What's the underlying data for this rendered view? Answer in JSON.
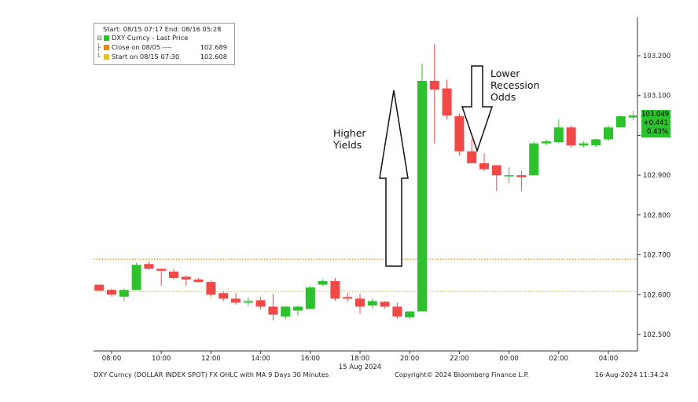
{
  "legend": {
    "header": "Start: 08/15 07:17 End: 08/16 05:28",
    "series_label": "DXY Curncy - Last Price",
    "close_label": "Close on 08/05 ----",
    "close_value": "102.689",
    "close_color": "#e08a12",
    "start_label": "Start on 08/15 07:30",
    "start_value": "102.608",
    "start_color": "#e6c31a"
  },
  "annotations": {
    "left": [
      "Higher",
      "Yields"
    ],
    "right": [
      "Lower",
      "Recession",
      "Odds"
    ]
  },
  "last_price": {
    "price": "103.049",
    "change": "+0.441",
    "pct": "0.43%",
    "color": "#2ec12e"
  },
  "footer": {
    "left": "DXY Curncy (DOLLAR INDEX SPOT) FX OHLC with MA 9 Days 30 Minutes",
    "center": "Copyright© 2024 Bloomberg Finance L.P.",
    "right": "16-Aug-2024 11:34:24"
  },
  "chart_data": {
    "type": "candlestick",
    "title": "",
    "xlabel": "",
    "ylabel": "",
    "ylim": [
      102.45,
      103.27
    ],
    "x_tick_labels": [
      "08:00",
      "10:00",
      "12:00",
      "14:00",
      "16:00",
      "18:00",
      "20:00",
      "22:00",
      "00:00",
      "02:00",
      "04:00"
    ],
    "x_date_label": "15 Aug 2024",
    "y_ticks": [
      102.5,
      102.6,
      102.7,
      102.8,
      102.9,
      103.0,
      103.1,
      103.2
    ],
    "y_tick_labels": [
      "102.500",
      "102.600",
      "102.700",
      "102.800",
      "102.900",
      "",
      "103.100",
      "103.200"
    ],
    "up_color": "#2ec12e",
    "down_color": "#f24848",
    "reference_lines": [
      {
        "value": 102.689,
        "color": "#e08a12"
      },
      {
        "value": 102.608,
        "color": "#e6c31a"
      }
    ],
    "candles": [
      {
        "time": "07:30",
        "open": 102.625,
        "high": 102.625,
        "low": 102.61,
        "close": 102.61
      },
      {
        "time": "08:00",
        "open": 102.612,
        "high": 102.615,
        "low": 102.595,
        "close": 102.6
      },
      {
        "time": "08:30",
        "open": 102.595,
        "high": 102.615,
        "low": 102.585,
        "close": 102.612
      },
      {
        "time": "09:00",
        "open": 102.612,
        "high": 102.68,
        "low": 102.612,
        "close": 102.675
      },
      {
        "time": "09:30",
        "open": 102.677,
        "high": 102.685,
        "low": 102.662,
        "close": 102.665
      },
      {
        "time": "10:00",
        "open": 102.665,
        "high": 102.665,
        "low": 102.622,
        "close": 102.66
      },
      {
        "time": "10:30",
        "open": 102.658,
        "high": 102.665,
        "low": 102.638,
        "close": 102.642
      },
      {
        "time": "11:00",
        "open": 102.645,
        "high": 102.648,
        "low": 102.622,
        "close": 102.638
      },
      {
        "time": "11:30",
        "open": 102.638,
        "high": 102.642,
        "low": 102.63,
        "close": 102.632
      },
      {
        "time": "12:00",
        "open": 102.632,
        "high": 102.636,
        "low": 102.595,
        "close": 102.6
      },
      {
        "time": "12:30",
        "open": 102.604,
        "high": 102.607,
        "low": 102.584,
        "close": 102.59
      },
      {
        "time": "13:00",
        "open": 102.59,
        "high": 102.604,
        "low": 102.575,
        "close": 102.58
      },
      {
        "time": "13:30",
        "open": 102.58,
        "high": 102.594,
        "low": 102.572,
        "close": 102.584
      },
      {
        "time": "14:00",
        "open": 102.586,
        "high": 102.594,
        "low": 102.562,
        "close": 102.57
      },
      {
        "time": "14:30",
        "open": 102.57,
        "high": 102.602,
        "low": 102.535,
        "close": 102.55
      },
      {
        "time": "15:00",
        "open": 102.545,
        "high": 102.572,
        "low": 102.538,
        "close": 102.57
      },
      {
        "time": "15:30",
        "open": 102.56,
        "high": 102.572,
        "low": 102.548,
        "close": 102.57
      },
      {
        "time": "16:00",
        "open": 102.564,
        "high": 102.622,
        "low": 102.564,
        "close": 102.618
      },
      {
        "time": "16:30",
        "open": 102.625,
        "high": 102.638,
        "low": 102.622,
        "close": 102.634
      },
      {
        "time": "17:00",
        "open": 102.634,
        "high": 102.642,
        "low": 102.585,
        "close": 102.59
      },
      {
        "time": "17:30",
        "open": 102.594,
        "high": 102.605,
        "low": 102.582,
        "close": 102.59
      },
      {
        "time": "18:00",
        "open": 102.59,
        "high": 102.602,
        "low": 102.552,
        "close": 102.57
      },
      {
        "time": "18:30",
        "open": 102.573,
        "high": 102.59,
        "low": 102.565,
        "close": 102.584
      },
      {
        "time": "19:00",
        "open": 102.582,
        "high": 102.584,
        "low": 102.565,
        "close": 102.57
      },
      {
        "time": "19:30",
        "open": 102.57,
        "high": 102.58,
        "low": 102.54,
        "close": 102.545
      },
      {
        "time": "20:00",
        "open": 102.543,
        "high": 102.558,
        "low": 102.538,
        "close": 102.558
      },
      {
        "time": "20:30",
        "open": 102.558,
        "high": 103.18,
        "low": 102.558,
        "close": 103.137
      },
      {
        "time": "21:00",
        "open": 103.137,
        "high": 103.23,
        "low": 102.98,
        "close": 103.115
      },
      {
        "time": "21:30",
        "open": 103.118,
        "high": 103.14,
        "low": 103.04,
        "close": 103.05
      },
      {
        "time": "22:00",
        "open": 103.048,
        "high": 103.055,
        "low": 102.95,
        "close": 102.96
      },
      {
        "time": "22:30",
        "open": 102.96,
        "high": 102.99,
        "low": 102.93,
        "close": 102.93
      },
      {
        "time": "23:00",
        "open": 102.93,
        "high": 102.955,
        "low": 102.91,
        "close": 102.915
      },
      {
        "time": "23:30",
        "open": 102.925,
        "high": 102.925,
        "low": 102.86,
        "close": 102.9
      },
      {
        "time": "00:00",
        "open": 102.9,
        "high": 102.92,
        "low": 102.88,
        "close": 102.9
      },
      {
        "time": "00:30",
        "open": 102.9,
        "high": 102.91,
        "low": 102.86,
        "close": 102.895
      },
      {
        "time": "01:00",
        "open": 102.9,
        "high": 102.985,
        "low": 102.9,
        "close": 102.98
      },
      {
        "time": "01:30",
        "open": 102.98,
        "high": 102.99,
        "low": 102.975,
        "close": 102.985
      },
      {
        "time": "02:00",
        "open": 102.983,
        "high": 103.04,
        "low": 102.98,
        "close": 103.02
      },
      {
        "time": "02:30",
        "open": 103.02,
        "high": 103.025,
        "low": 102.97,
        "close": 102.975
      },
      {
        "time": "03:00",
        "open": 102.975,
        "high": 102.985,
        "low": 102.97,
        "close": 102.98
      },
      {
        "time": "03:30",
        "open": 102.975,
        "high": 102.992,
        "low": 102.97,
        "close": 102.99
      },
      {
        "time": "04:00",
        "open": 102.99,
        "high": 103.025,
        "low": 102.985,
        "close": 103.02
      },
      {
        "time": "04:30",
        "open": 103.02,
        "high": 103.05,
        "low": 103.02,
        "close": 103.048
      },
      {
        "time": "05:00",
        "open": 103.045,
        "high": 103.062,
        "low": 103.038,
        "close": 103.05
      },
      {
        "time": "05:30",
        "open": 103.05,
        "high": 103.052,
        "low": 103.045,
        "close": 103.049
      }
    ]
  }
}
